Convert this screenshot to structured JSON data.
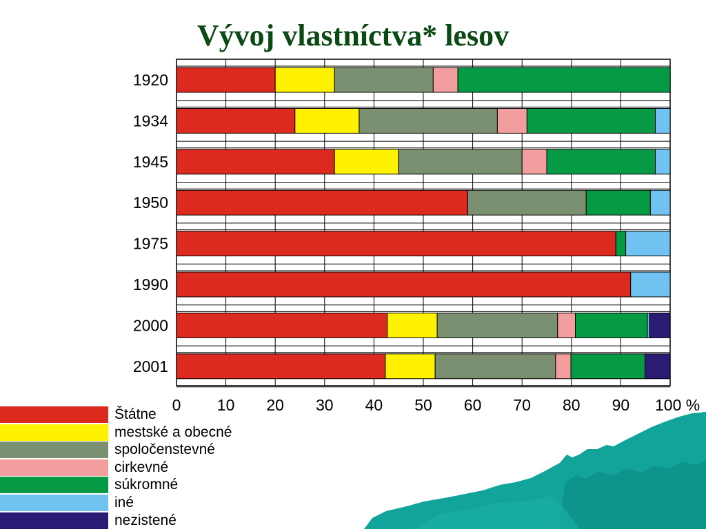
{
  "title": "Vývoj vlastníctva* lesov",
  "chart_data": {
    "type": "bar",
    "orientation": "horizontal",
    "stacked": true,
    "title": "Vývoj vlastníctva* lesov",
    "categories": [
      "1920",
      "1934",
      "1945",
      "1950",
      "1975",
      "1990",
      "2000",
      "2001"
    ],
    "xlim": [
      0,
      100
    ],
    "x_ticks": [
      "0",
      "10",
      "20",
      "30",
      "40",
      "50",
      "60",
      "70",
      "80",
      "90",
      "100 %"
    ],
    "grid": true,
    "legend_position": "bottom-left",
    "series": [
      {
        "name": "Štátne",
        "color": "#dc2a1e",
        "values": [
          20,
          24,
          32,
          59,
          89,
          92,
          42.7,
          42.3
        ]
      },
      {
        "name": "mestské a obecné",
        "color": "#fff200",
        "values": [
          12,
          13,
          13,
          0,
          0,
          0,
          10.1,
          10.1
        ]
      },
      {
        "name": "spoločenstevné",
        "color": "#7a9070",
        "values": [
          20,
          28,
          25,
          24,
          0,
          0,
          24.4,
          24.4
        ]
      },
      {
        "name": "cirkevné",
        "color": "#f29e9e",
        "values": [
          5,
          6,
          5,
          0,
          0,
          0,
          3.6,
          3.1
        ]
      },
      {
        "name": "súkromné",
        "color": "#079a44",
        "values": [
          43,
          26,
          22,
          13,
          2,
          0,
          14.6,
          15.0
        ]
      },
      {
        "name": "iné",
        "color": "#70c2f0",
        "values": [
          0,
          3,
          3,
          4,
          9,
          8,
          0.4,
          0
        ]
      },
      {
        "name": "nezistené",
        "color": "#2a1b74",
        "values": [
          0,
          0,
          0,
          0,
          0,
          0,
          4.2,
          5.1
        ]
      }
    ]
  }
}
